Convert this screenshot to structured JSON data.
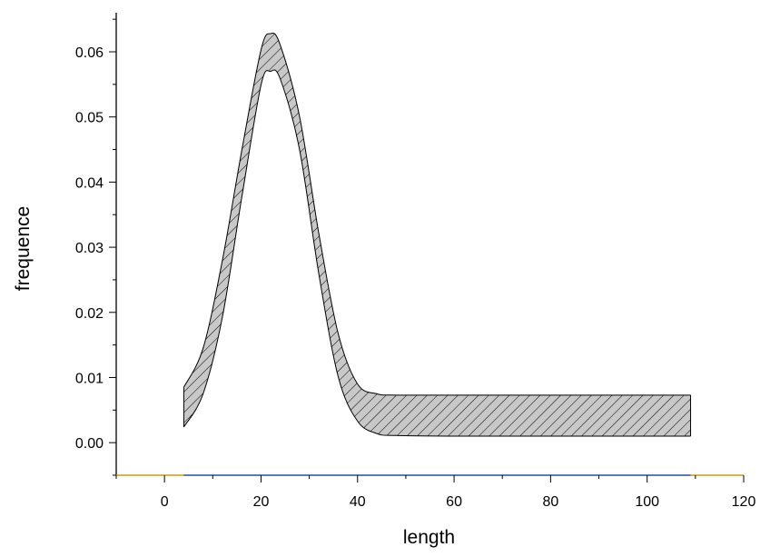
{
  "chart_data": {
    "type": "area",
    "xlabel": "length",
    "ylabel": "frequence",
    "xlim": [
      -10,
      120
    ],
    "ylim": [
      -0.005,
      0.066
    ],
    "x_ticks": [
      0,
      20,
      40,
      60,
      80,
      100,
      120
    ],
    "x_tick_labels": [
      "0",
      "20",
      "40",
      "60",
      "80",
      "100",
      "120"
    ],
    "y_ticks": [
      0.0,
      0.01,
      0.02,
      0.03,
      0.04,
      0.05,
      0.06
    ],
    "y_tick_labels": [
      "0.00",
      "0.01",
      "0.02",
      "0.03",
      "0.04",
      "0.05",
      "0.06"
    ],
    "grid": false,
    "band": {
      "x": [
        4,
        8,
        12,
        16,
        20,
        22,
        24,
        28,
        32,
        36,
        40,
        44,
        48,
        60,
        80,
        100,
        109
      ],
      "lower": [
        0.0024,
        0.0075,
        0.0193,
        0.0376,
        0.0549,
        0.057,
        0.0558,
        0.0449,
        0.0258,
        0.0101,
        0.0033,
        0.0014,
        0.0011,
        0.001,
        0.001,
        0.001,
        0.001
      ],
      "upper": [
        0.0085,
        0.0145,
        0.028,
        0.0448,
        0.0603,
        0.0628,
        0.061,
        0.05,
        0.032,
        0.0167,
        0.009,
        0.0075,
        0.0073,
        0.0073,
        0.0073,
        0.0073,
        0.0073
      ]
    },
    "colors": {
      "band_fill": "#c8c8c8",
      "hatch": "#000000",
      "outline": "#000000",
      "axis": "#000000",
      "data_range_segment": "#1f4fbf",
      "outside_range_segment": "#e8b000"
    },
    "data_range_x": [
      4,
      109
    ]
  }
}
